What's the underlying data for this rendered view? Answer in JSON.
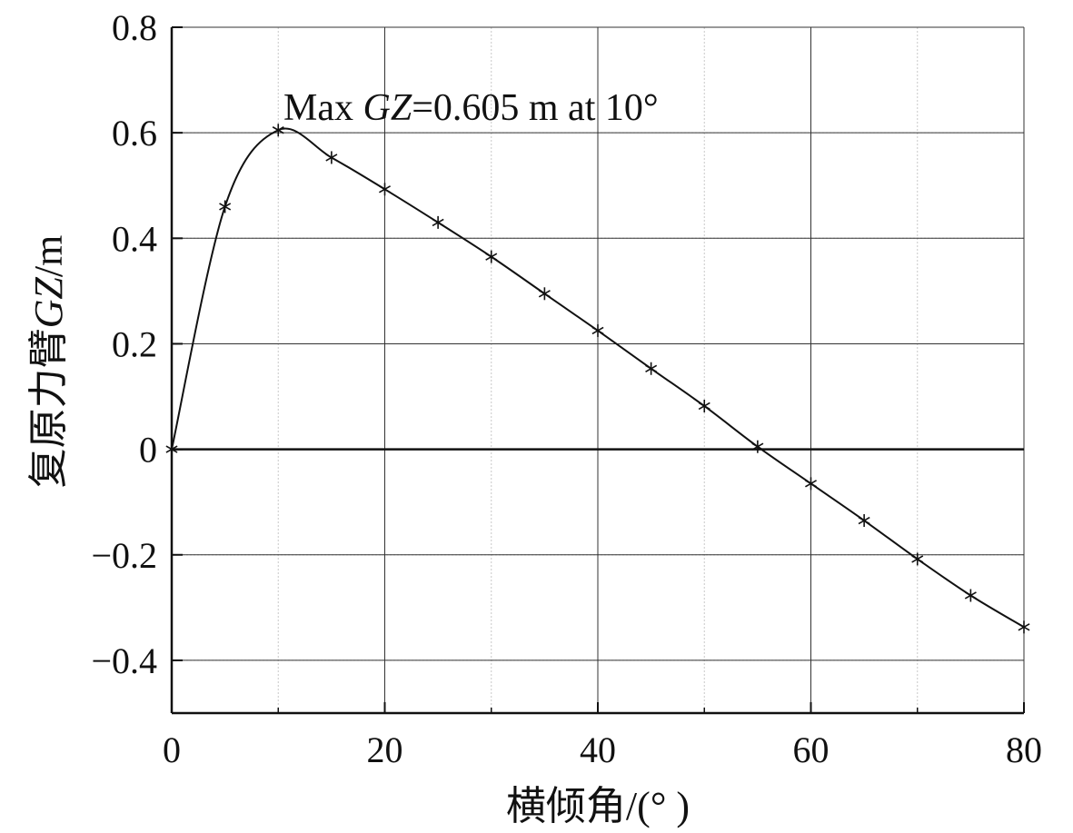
{
  "chart_data": {
    "type": "line",
    "xlabel": "横倾角/(° )",
    "ylabel_prefix": "复原力臂",
    "ylabel_italic": "GZ",
    "ylabel_suffix": "/m",
    "xlim": [
      0,
      80
    ],
    "ylim": [
      -0.5,
      0.8
    ],
    "x_ticks": [
      0,
      20,
      40,
      60,
      80
    ],
    "x_tick_labels": [
      "0",
      "20",
      "40",
      "60",
      "80"
    ],
    "y_ticks": [
      0.8,
      0.6,
      0.4,
      0.2,
      0,
      -0.2,
      -0.4
    ],
    "y_tick_labels": [
      "0.8",
      "0.6",
      "0.4",
      "0.2",
      "0",
      "−0.2",
      "−0.4"
    ],
    "grid": true,
    "minor_grid": true,
    "series": [
      {
        "marker": "asterisk",
        "x": [
          0,
          5,
          10,
          15,
          20,
          25,
          30,
          35,
          40,
          45,
          50,
          55,
          60,
          65,
          70,
          75,
          80
        ],
        "y": [
          0,
          0.46,
          0.605,
          0.553,
          0.493,
          0.43,
          0.365,
          0.295,
          0.225,
          0.153,
          0.082,
          0.005,
          -0.065,
          -0.135,
          -0.208,
          -0.277,
          -0.337
        ]
      }
    ],
    "annotation": {
      "prefix": "Max ",
      "italic": "GZ",
      "suffix": "=0.605 m at 10°",
      "x": 10,
      "y": 0.605
    }
  }
}
